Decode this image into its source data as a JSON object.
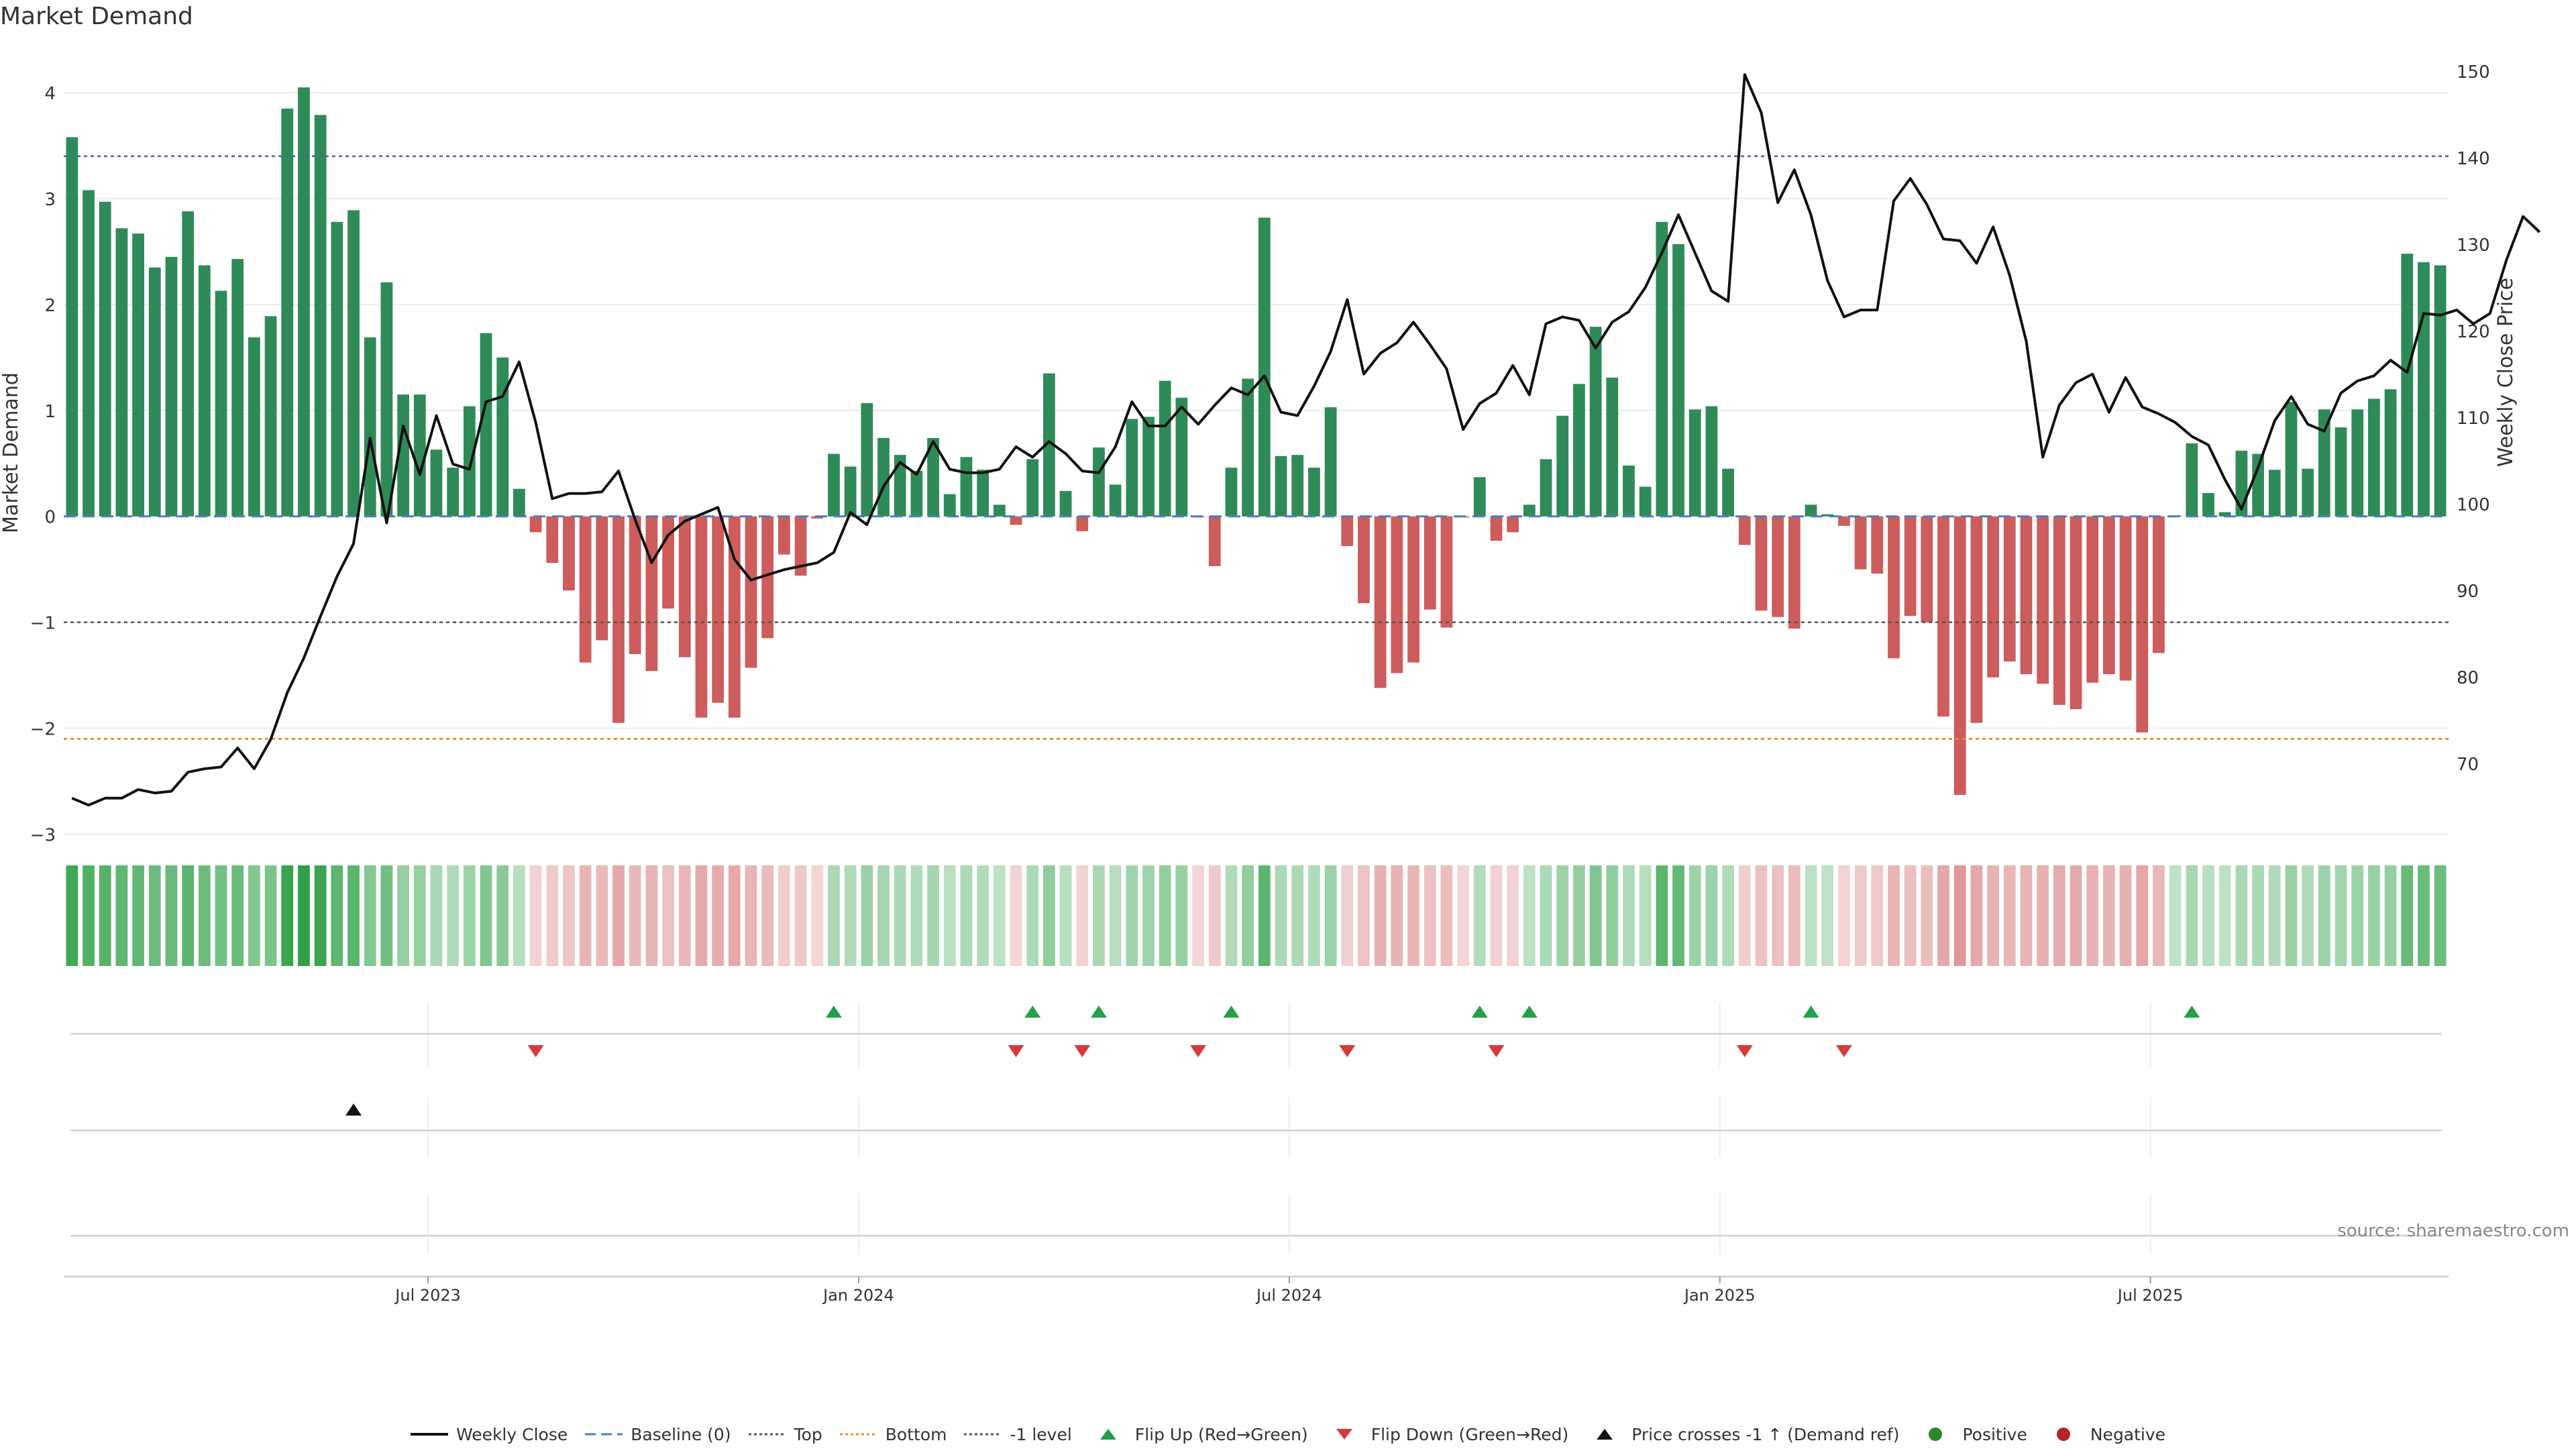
{
  "chart_data": {
    "type": "bar",
    "title": "Market Demand",
    "ylabel": "Market Demand",
    "y2label": "Weekly Close Price",
    "ylim": [
      -3.2,
      4.4
    ],
    "y2lim": [
      59.4,
      152.4
    ],
    "yticks": [
      -3,
      -2,
      -1,
      0,
      1,
      2,
      3,
      4
    ],
    "y2ticks": [
      70,
      80,
      90,
      100,
      110,
      120,
      130,
      140,
      150
    ],
    "date_ticks": [
      "Jul 2023",
      "Jan 2024",
      "Jul 2024",
      "Jan 2025",
      "Jul 2025"
    ],
    "weeks_per_tick": [
      22,
      48,
      74,
      100,
      126
    ],
    "reference_lines": {
      "top": 3.4,
      "bottom": -2.1,
      "minus_one": -1.0,
      "baseline": 0
    },
    "demand": [
      3.58,
      3.08,
      2.97,
      2.72,
      2.67,
      2.35,
      2.45,
      2.88,
      2.37,
      2.13,
      2.43,
      1.69,
      1.89,
      3.85,
      4.05,
      3.79,
      2.78,
      2.89,
      1.69,
      2.21,
      1.15,
      1.15,
      0.63,
      0.46,
      1.04,
      1.73,
      1.5,
      0.26,
      -0.15,
      -0.44,
      -0.7,
      -1.38,
      -1.17,
      -1.95,
      -1.3,
      -1.46,
      -0.87,
      -1.33,
      -1.9,
      -1.76,
      -1.9,
      -1.43,
      -1.15,
      -0.36,
      -0.56,
      -0.02,
      0.59,
      0.47,
      1.07,
      0.74,
      0.58,
      0.43,
      0.74,
      0.21,
      0.56,
      0.44,
      0.11,
      -0.08,
      0.54,
      1.35,
      0.24,
      -0.14,
      0.65,
      0.3,
      0.92,
      0.94,
      1.28,
      1.12,
      -0.01,
      -0.47,
      0.46,
      1.3,
      2.82,
      0.57,
      0.58,
      0.46,
      1.03,
      -0.28,
      -0.82,
      -1.62,
      -1.48,
      -1.38,
      -0.88,
      -1.05,
      -0.01,
      0.37,
      -0.23,
      -0.15,
      0.11,
      0.54,
      0.95,
      1.25,
      1.79,
      1.31,
      0.48,
      0.28,
      2.78,
      2.57,
      1.01,
      1.04,
      0.45,
      -0.27,
      -0.89,
      -0.95,
      -1.06,
      0.11,
      0.02,
      -0.09,
      -0.5,
      -0.54,
      -1.34,
      -0.94,
      -1.0,
      -1.89,
      -2.63,
      -1.95,
      -1.52,
      -1.37,
      -1.49,
      -1.58,
      -1.78,
      -1.82,
      -1.57,
      -1.49,
      -1.55,
      -2.04,
      -1.29,
      0.01,
      0.69,
      0.22,
      0.04,
      0.62,
      0.59,
      0.44,
      1.08,
      0.45,
      1.01,
      0.84,
      1.01,
      1.11,
      1.2,
      2.48,
      2.4,
      2.37
    ],
    "close": [
      66.0,
      65.2,
      66.0,
      66.0,
      67.0,
      66.6,
      66.8,
      69.0,
      69.4,
      69.6,
      71.8,
      69.4,
      72.8,
      78.2,
      82.2,
      87.0,
      91.6,
      95.4,
      107.6,
      97.8,
      109.0,
      103.4,
      110.2,
      104.6,
      104.0,
      111.8,
      112.4,
      116.4,
      109.4,
      100.6,
      101.2,
      101.2,
      101.4,
      103.8,
      98.2,
      93.2,
      96.4,
      98.0,
      98.8,
      99.6,
      93.6,
      91.2,
      91.8,
      92.4,
      92.8,
      93.2,
      94.4,
      99.0,
      97.6,
      102.0,
      104.8,
      103.4,
      107.2,
      104.0,
      103.6,
      103.6,
      104.0,
      106.6,
      105.4,
      107.2,
      105.8,
      103.8,
      103.6,
      106.6,
      111.8,
      109.0,
      109.0,
      111.2,
      109.2,
      111.4,
      113.4,
      112.6,
      114.8,
      110.6,
      110.2,
      113.6,
      117.6,
      123.6,
      115.0,
      117.4,
      118.6,
      121.0,
      118.4,
      115.6,
      108.6,
      111.6,
      112.8,
      116.0,
      112.6,
      120.8,
      121.6,
      121.2,
      118.0,
      121.0,
      122.2,
      125.0,
      129.0,
      133.4,
      129.0,
      124.6,
      123.4,
      149.6,
      145.2,
      134.8,
      138.6,
      133.4,
      125.8,
      121.6,
      122.4,
      122.4,
      135.0,
      137.6,
      134.6,
      130.6,
      130.4,
      127.8,
      132.0,
      126.4,
      118.8,
      105.4,
      111.4,
      114.0,
      115.0,
      110.6,
      114.6,
      111.2,
      110.4,
      109.4,
      107.8,
      106.8,
      102.8,
      99.4,
      104.2,
      109.6,
      112.4,
      109.2,
      108.4,
      112.8,
      114.2,
      114.8,
      116.6,
      115.2,
      122.0,
      121.8,
      122.4,
      120.8,
      122.0,
      128.2,
      133.2,
      131.4
    ],
    "flip_up_weeks": [
      46,
      58,
      62,
      70,
      85,
      88,
      105,
      128
    ],
    "flip_down_weeks": [
      28,
      57,
      61,
      68,
      77,
      86,
      101,
      107
    ],
    "price_cross_weeks": [
      17
    ]
  },
  "source": "source: sharemaestro.com",
  "legend": [
    {
      "label": "Weekly Close",
      "kind": "line-solid",
      "color": "#111111"
    },
    {
      "label": "Baseline (0)",
      "kind": "line-dash",
      "color": "#4a7fc1"
    },
    {
      "label": "Top",
      "kind": "line-dot",
      "color": "#555555"
    },
    {
      "label": "Bottom",
      "kind": "line-dot",
      "color": "#e0913a"
    },
    {
      "label": "-1 level",
      "kind": "line-dot",
      "color": "#555555"
    },
    {
      "label": "Flip Up (Red→Green)",
      "kind": "tri-up",
      "color": "#22a04a"
    },
    {
      "label": "Flip Down (Green→Red)",
      "kind": "tri-down",
      "color": "#d63a3a"
    },
    {
      "label": "Price crosses -1 ↑ (Demand ref)",
      "kind": "tri-up",
      "color": "#111111"
    },
    {
      "label": "Positive",
      "kind": "dot",
      "color": "#2a8a2a"
    },
    {
      "label": "Negative",
      "kind": "dot",
      "color": "#b52424"
    }
  ],
  "colors": {
    "positive_bar": "#2e8b57",
    "negative_bar": "#cd5c5c",
    "top_line": "#5a5aa0",
    "bottom_line": "#e0913a",
    "minus_one_line": "#555555",
    "close_line": "#111111"
  }
}
